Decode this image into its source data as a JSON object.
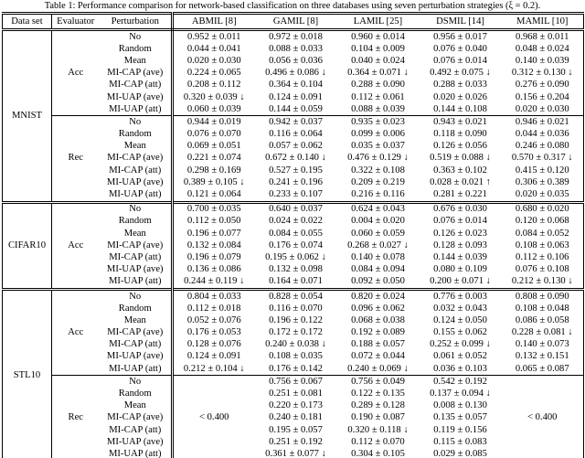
{
  "caption": "Table 1: Performance comparison for network-based classification on three databases using seven perturbation strategies (ξ = 0.2).",
  "table": {
    "columns": [
      "Data set",
      "Evaluator",
      "Perturbation",
      "ABMIL [8]",
      "GAMIL [8]",
      "LAMIL [25]",
      "DSMIL [14]",
      "MAMIL [10]"
    ],
    "sections": [
      {
        "dataset": "MNIST",
        "groups": [
          {
            "evaluator": "Acc",
            "rows": [
              {
                "perturbation": "No",
                "values": [
                  "0.952 ± 0.011",
                  "0.972 ± 0.018",
                  "0.960 ± 0.014",
                  "0.956 ± 0.017",
                  "0.968 ± 0.011"
                ]
              },
              {
                "perturbation": "Random",
                "values": [
                  "0.044 ± 0.041",
                  "0.088 ± 0.033",
                  "0.104 ± 0.009",
                  "0.076 ± 0.040",
                  "0.048 ± 0.024"
                ]
              },
              {
                "perturbation": "Mean",
                "values": [
                  "0.020 ± 0.030",
                  "0.056 ± 0.036",
                  "0.040 ± 0.024",
                  "0.076 ± 0.014",
                  "0.140 ± 0.039"
                ]
              },
              {
                "perturbation": "MI-CAP (ave)",
                "values": [
                  "0.224 ± 0.065",
                  "0.496 ± 0.086 ↓",
                  "0.364 ± 0.071 ↓",
                  "0.492 ± 0.075 ↓",
                  "0.312 ± 0.130 ↓"
                ]
              },
              {
                "perturbation": "MI-CAP (att)",
                "values": [
                  "0.208 ± 0.112",
                  "0.364 ± 0.104",
                  "0.288 ± 0.090",
                  "0.288 ± 0.033",
                  "0.276 ± 0.090"
                ]
              },
              {
                "perturbation": "MI-UAP (ave)",
                "values": [
                  "0.320 ± 0.039 ↓",
                  "0.124 ± 0.091",
                  "0.112 ± 0.061",
                  "0.020 ± 0.026",
                  "0.156 ± 0.204"
                ]
              },
              {
                "perturbation": "MI-UAP (att)",
                "values": [
                  "0.060 ± 0.039",
                  "0.144 ± 0.059",
                  "0.088 ± 0.039",
                  "0.144 ± 0.108",
                  "0.020 ± 0.030"
                ]
              }
            ]
          },
          {
            "evaluator": "Rec",
            "rows": [
              {
                "perturbation": "No",
                "values": [
                  "0.944 ± 0.019",
                  "0.942 ± 0.037",
                  "0.935 ± 0.023",
                  "0.943 ± 0.021",
                  "0.946 ± 0.021"
                ]
              },
              {
                "perturbation": "Random",
                "values": [
                  "0.076 ± 0.070",
                  "0.116 ± 0.064",
                  "0.099 ± 0.006",
                  "0.118 ± 0.090",
                  "0.044 ± 0.036"
                ]
              },
              {
                "perturbation": "Mean",
                "values": [
                  "0.069 ± 0.051",
                  "0.057 ± 0.062",
                  "0.035 ± 0.037",
                  "0.126 ± 0.056",
                  "0.246 ± 0.080"
                ]
              },
              {
                "perturbation": "MI-CAP (ave)",
                "values": [
                  "0.221 ± 0.074",
                  "0.672 ± 0.140 ↓",
                  "0.476 ± 0.129 ↓",
                  "0.519 ± 0.088 ↓",
                  "0.570 ± 0.317 ↓"
                ]
              },
              {
                "perturbation": "MI-CAP (att)",
                "values": [
                  "0.298 ± 0.169",
                  "0.527 ± 0.195",
                  "0.322 ± 0.108",
                  "0.363 ± 0.102",
                  "0.415 ± 0.120"
                ]
              },
              {
                "perturbation": "MI-UAP (ave)",
                "values": [
                  "0.389 ± 0.105 ↓",
                  "0.241 ± 0.196",
                  "0.209 ± 0.219",
                  "0.028 ± 0.021 ↑",
                  "0.306 ± 0.389"
                ]
              },
              {
                "perturbation": "MI-UAP (att)",
                "values": [
                  "0.121 ± 0.064",
                  "0.233 ± 0.107",
                  "0.216 ± 0.116",
                  "0.281 ± 0.221",
                  "0.020 ± 0.035"
                ]
              }
            ]
          }
        ]
      },
      {
        "dataset": "CIFAR10",
        "groups": [
          {
            "evaluator": "Acc",
            "rows": [
              {
                "perturbation": "No",
                "values": [
                  "0.700 ± 0.035",
                  "0.640 ± 0.037",
                  "0.624 ± 0.043",
                  "0.676 ± 0.030",
                  "0.680 ± 0.020"
                ]
              },
              {
                "perturbation": "Random",
                "values": [
                  "0.112 ± 0.050",
                  "0.024 ± 0.022",
                  "0.004 ± 0.020",
                  "0.076 ± 0.014",
                  "0.120 ± 0.068"
                ]
              },
              {
                "perturbation": "Mean",
                "values": [
                  "0.196 ± 0.077",
                  "0.084 ± 0.055",
                  "0.060 ± 0.059",
                  "0.126 ± 0.023",
                  "0.084 ± 0.052"
                ]
              },
              {
                "perturbation": "MI-CAP (ave)",
                "values": [
                  "0.132 ± 0.084",
                  "0.176 ± 0.074",
                  "0.268 ± 0.027 ↓",
                  "0.128 ± 0.093",
                  "0.108 ± 0.063"
                ]
              },
              {
                "perturbation": "MI-CAP (att)",
                "values": [
                  "0.196 ± 0.079",
                  "0.195 ± 0.062 ↓",
                  "0.140 ± 0.078",
                  "0.144 ± 0.039",
                  "0.112 ± 0.106"
                ]
              },
              {
                "perturbation": "MI-UAP (ave)",
                "values": [
                  "0.136 ± 0.086",
                  "0.132 ± 0.098",
                  "0.084 ± 0.094",
                  "0.080 ± 0.109",
                  "0.076 ± 0.108"
                ]
              },
              {
                "perturbation": "MI-UAP (att)",
                "values": [
                  "0.244 ± 0.119 ↓",
                  "0.164 ± 0.071",
                  "0.092 ± 0.050",
                  "0.200 ± 0.071 ↓",
                  "0.212 ± 0.130 ↓"
                ]
              }
            ]
          }
        ]
      },
      {
        "dataset": "STL10",
        "groups": [
          {
            "evaluator": "Acc",
            "rows": [
              {
                "perturbation": "No",
                "values": [
                  "0.804 ± 0.033",
                  "0.828 ± 0.054",
                  "0.820 ± 0.024",
                  "0.776 ± 0.003",
                  "0.808 ± 0.090"
                ]
              },
              {
                "perturbation": "Random",
                "values": [
                  "0.112 ± 0.018",
                  "0.116 ± 0.070",
                  "0.096 ± 0.062",
                  "0.032 ± 0.043",
                  "0.108 ± 0.048"
                ]
              },
              {
                "perturbation": "Mean",
                "values": [
                  "0.052 ± 0.076",
                  "0.196 ± 0.122",
                  "0.068 ± 0.038",
                  "0.124 ± 0.050",
                  "0.086 ± 0.058"
                ]
              },
              {
                "perturbation": "MI-CAP (ave)",
                "values": [
                  "0.176 ± 0.053",
                  "0.172 ± 0.172",
                  "0.192 ± 0.089",
                  "0.155 ± 0.062",
                  "0.228 ± 0.081 ↓"
                ]
              },
              {
                "perturbation": "MI-CAP (att)",
                "values": [
                  "0.128 ± 0.076",
                  "0.240 ± 0.038 ↓",
                  "0.188 ± 0.057",
                  "0.252 ± 0.099 ↓",
                  "0.140 ± 0.073"
                ]
              },
              {
                "perturbation": "MI-UAP (ave)",
                "values": [
                  "0.124 ± 0.091",
                  "0.108 ± 0.035",
                  "0.072 ± 0.044",
                  "0.061 ± 0.052",
                  "0.132 ± 0.151"
                ]
              },
              {
                "perturbation": "MI-UAP (att)",
                "values": [
                  "0.212 ± 0.104 ↓",
                  "0.176 ± 0.142",
                  "0.240 ± 0.069 ↓",
                  "0.036 ± 0.103",
                  "0.065 ± 0.087"
                ]
              }
            ]
          },
          {
            "evaluator": "Rec",
            "span_cells": [
              {
                "col": 0,
                "text": "< 0.400"
              },
              {
                "col": 4,
                "text": "< 0.400"
              }
            ],
            "rows": [
              {
                "perturbation": "No",
                "values": [
                  null,
                  "0.756 ± 0.067",
                  "0.756 ± 0.049",
                  "0.542 ± 0.192",
                  null
                ]
              },
              {
                "perturbation": "Random",
                "values": [
                  null,
                  "0.251 ± 0.081",
                  "0.122 ± 0.135",
                  "0.137 ± 0.094 ↓",
                  null
                ]
              },
              {
                "perturbation": "Mean",
                "values": [
                  null,
                  "0.220 ± 0.173",
                  "0.289 ± 0.128",
                  "0.008 ± 0.130",
                  null
                ]
              },
              {
                "perturbation": "MI-CAP (ave)",
                "values": [
                  null,
                  "0.240 ± 0.181",
                  "0.190 ± 0.087",
                  "0.135 ± 0.057",
                  null
                ]
              },
              {
                "perturbation": "MI-CAP (att)",
                "values": [
                  null,
                  "0.195 ± 0.057",
                  "0.320 ± 0.118 ↓",
                  "0.119 ± 0.156",
                  null
                ]
              },
              {
                "perturbation": "MI-UAP (ave)",
                "values": [
                  null,
                  "0.251 ± 0.192",
                  "0.112 ± 0.070",
                  "0.115 ± 0.083",
                  null
                ]
              },
              {
                "perturbation": "MI-UAP (att)",
                "values": [
                  null,
                  "0.361 ± 0.077 ↓",
                  "0.304 ± 0.105",
                  "0.029 ± 0.085",
                  null
                ]
              }
            ]
          }
        ]
      }
    ]
  }
}
